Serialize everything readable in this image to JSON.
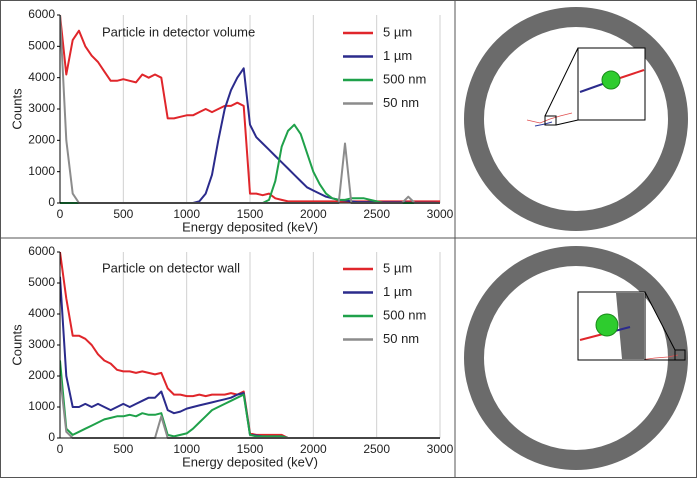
{
  "chart_data": [
    {
      "type": "line",
      "title": "Particle in detector volume",
      "x_label": "Energy deposited (keV)",
      "y_label": "Counts",
      "x": [
        0,
        50,
        100,
        150,
        200,
        250,
        300,
        350,
        400,
        450,
        500,
        550,
        600,
        650,
        700,
        750,
        800,
        850,
        900,
        950,
        1000,
        1050,
        1100,
        1150,
        1200,
        1250,
        1300,
        1350,
        1400,
        1450,
        1500,
        1550,
        1600,
        1650,
        1700,
        1750,
        1800,
        1850,
        1900,
        1950,
        2000,
        2050,
        2100,
        2150,
        2200,
        2250,
        2300,
        2350,
        2400,
        2450,
        2500,
        2550,
        2600,
        2650,
        2700,
        2750,
        2800,
        2850,
        2900,
        2950,
        3000
      ],
      "xlim": [
        0,
        3000
      ],
      "xticks": [
        0,
        500,
        1000,
        1500,
        2000,
        2500,
        3000
      ],
      "ylim": [
        0,
        6000
      ],
      "yticks": [
        0,
        1000,
        2000,
        3000,
        4000,
        5000,
        6000
      ],
      "grid": "x",
      "series": [
        {
          "name": "5 µm",
          "color": "#e0262b",
          "values": [
            6000,
            4100,
            5200,
            5500,
            5000,
            4700,
            4500,
            4200,
            3900,
            3900,
            3950,
            3900,
            3850,
            4100,
            4000,
            4100,
            4000,
            2700,
            2700,
            2750,
            2800,
            2800,
            2900,
            3000,
            2900,
            3000,
            3100,
            3100,
            3200,
            3100,
            300,
            300,
            250,
            300,
            150,
            100,
            50,
            50,
            50,
            50,
            50,
            50,
            50,
            50,
            50,
            50,
            50,
            50,
            50,
            50,
            50,
            50,
            50,
            50,
            50,
            50,
            50,
            50,
            50,
            50,
            50
          ]
        },
        {
          "name": "1 µm",
          "color": "#2b2b8c",
          "values": [
            0,
            0,
            0,
            0,
            0,
            0,
            0,
            0,
            0,
            0,
            0,
            0,
            0,
            0,
            0,
            0,
            0,
            0,
            0,
            0,
            0,
            0,
            50,
            300,
            900,
            2000,
            3000,
            3600,
            4000,
            4300,
            2500,
            2100,
            1900,
            1700,
            1500,
            1300,
            1100,
            900,
            700,
            500,
            400,
            300,
            200,
            150,
            100,
            80,
            50,
            30,
            30,
            30,
            30,
            20,
            20,
            20,
            20,
            10,
            10,
            10,
            10,
            10,
            0
          ]
        },
        {
          "name": "500 nm",
          "color": "#1fa14a",
          "values": [
            0,
            0,
            0,
            0,
            0,
            0,
            0,
            0,
            0,
            0,
            0,
            0,
            0,
            0,
            0,
            0,
            0,
            0,
            0,
            0,
            0,
            0,
            0,
            0,
            0,
            0,
            0,
            0,
            0,
            0,
            0,
            0,
            0,
            100,
            700,
            1800,
            2300,
            2500,
            2200,
            1600,
            1000,
            600,
            300,
            150,
            100,
            100,
            150,
            150,
            150,
            100,
            50,
            0,
            0,
            0,
            0,
            0,
            0,
            0,
            0,
            0,
            0
          ]
        },
        {
          "name": "50 nm",
          "color": "#8c8c8c",
          "values": [
            6000,
            2000,
            300,
            0,
            0,
            0,
            0,
            0,
            0,
            0,
            0,
            0,
            0,
            0,
            0,
            0,
            0,
            0,
            0,
            0,
            0,
            0,
            0,
            0,
            0,
            0,
            0,
            0,
            0,
            0,
            0,
            0,
            0,
            0,
            0,
            0,
            0,
            0,
            0,
            0,
            0,
            0,
            0,
            0,
            0,
            1900,
            0,
            0,
            0,
            0,
            0,
            0,
            0,
            0,
            0,
            200,
            0,
            0,
            0,
            0,
            0
          ]
        }
      ]
    },
    {
      "type": "line",
      "title": "Particle on detector wall",
      "x_label": "Energy deposited (keV)",
      "y_label": "Counts",
      "x": [
        0,
        50,
        100,
        150,
        200,
        250,
        300,
        350,
        400,
        450,
        500,
        550,
        600,
        650,
        700,
        750,
        800,
        850,
        900,
        950,
        1000,
        1050,
        1100,
        1150,
        1200,
        1250,
        1300,
        1350,
        1400,
        1450,
        1500,
        1550,
        1600,
        1650,
        1700,
        1750,
        1800,
        1850,
        1900,
        1950,
        2000,
        2050,
        2100,
        2150,
        2200,
        2250,
        2300,
        2350,
        2400,
        2450,
        2500,
        2550,
        2600,
        2650,
        2700,
        2750,
        2800,
        2850,
        2900,
        2950,
        3000
      ],
      "xlim": [
        0,
        3000
      ],
      "xticks": [
        0,
        500,
        1000,
        1500,
        2000,
        2500,
        3000
      ],
      "ylim": [
        0,
        6000
      ],
      "yticks": [
        0,
        1000,
        2000,
        3000,
        4000,
        5000,
        6000
      ],
      "grid": "x",
      "series": [
        {
          "name": "5 µm",
          "color": "#e0262b",
          "values": [
            6000,
            4500,
            3300,
            3300,
            3200,
            3000,
            2700,
            2500,
            2400,
            2200,
            2150,
            2150,
            2100,
            2150,
            2100,
            2050,
            2100,
            1600,
            1400,
            1400,
            1350,
            1350,
            1400,
            1350,
            1400,
            1400,
            1400,
            1450,
            1400,
            1500,
            150,
            100,
            100,
            100,
            100,
            100,
            0,
            0,
            0,
            0,
            0,
            0,
            0,
            0,
            0,
            0,
            0,
            0,
            0,
            0,
            0,
            0,
            0,
            0,
            0,
            0,
            0,
            0,
            0,
            0,
            0
          ]
        },
        {
          "name": "1 µm",
          "color": "#2b2b8c",
          "values": [
            5200,
            2000,
            1000,
            1000,
            1100,
            1000,
            1100,
            1000,
            900,
            1000,
            1100,
            1000,
            1100,
            1200,
            1300,
            1300,
            1500,
            900,
            800,
            850,
            950,
            1000,
            1050,
            1100,
            1150,
            1200,
            1250,
            1300,
            1400,
            1450,
            100,
            80,
            50,
            50,
            50,
            50,
            0,
            0,
            0,
            0,
            0,
            0,
            0,
            0,
            0,
            0,
            0,
            0,
            0,
            0,
            0,
            0,
            0,
            0,
            0,
            0,
            0,
            0,
            0,
            0,
            0
          ]
        },
        {
          "name": "500 nm",
          "color": "#1fa14a",
          "values": [
            2500,
            300,
            100,
            200,
            300,
            400,
            500,
            600,
            650,
            700,
            700,
            750,
            700,
            800,
            750,
            750,
            800,
            100,
            50,
            100,
            150,
            300,
            500,
            700,
            900,
            1000,
            1100,
            1200,
            1300,
            1400,
            100,
            50,
            50,
            50,
            50,
            50,
            0,
            0,
            0,
            0,
            0,
            0,
            0,
            0,
            0,
            0,
            0,
            0,
            0,
            0,
            0,
            0,
            0,
            0,
            0,
            0,
            0,
            0,
            0,
            0,
            0
          ]
        },
        {
          "name": "50 nm",
          "color": "#8c8c8c",
          "values": [
            2000,
            200,
            0,
            0,
            0,
            0,
            0,
            0,
            0,
            0,
            0,
            0,
            0,
            0,
            0,
            0,
            700,
            0,
            0,
            0,
            0,
            0,
            0,
            0,
            0,
            0,
            0,
            0,
            0,
            0,
            0,
            0,
            0,
            0,
            0,
            0,
            0,
            0,
            0,
            0,
            0,
            0,
            0,
            0,
            0,
            0,
            0,
            0,
            0,
            0,
            0,
            0,
            0,
            0,
            0,
            0,
            0,
            0,
            0,
            0,
            0
          ]
        }
      ]
    }
  ]
}
